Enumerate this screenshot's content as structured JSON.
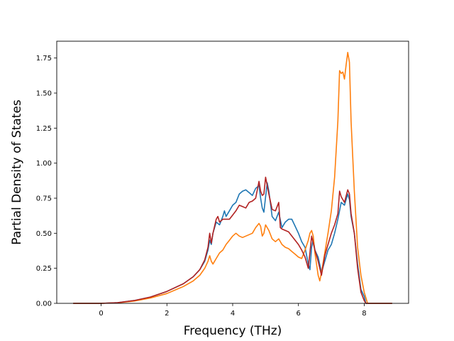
{
  "chart_data": {
    "type": "line",
    "title": "",
    "xlabel": "Frequency (THz)",
    "ylabel": "Partial Density of States",
    "xlim": [
      -1.35,
      9.35
    ],
    "ylim": [
      0.0,
      1.87
    ],
    "xticks": [
      0,
      2,
      4,
      6,
      8
    ],
    "xtick_labels": [
      "0",
      "2",
      "4",
      "6",
      "8"
    ],
    "yticks": [
      0.0,
      0.25,
      0.5,
      0.75,
      1.0,
      1.25,
      1.5,
      1.75
    ],
    "ytick_labels": [
      "0.00",
      "0.25",
      "0.50",
      "0.75",
      "1.00",
      "1.25",
      "1.50",
      "1.75"
    ],
    "grid": false,
    "legend": "none",
    "series": [
      {
        "color": "#1f77b4",
        "points": [
          [
            -0.85,
            0
          ],
          [
            0,
            0
          ],
          [
            0.5,
            0.005
          ],
          [
            1.0,
            0.02
          ],
          [
            1.5,
            0.045
          ],
          [
            2.0,
            0.085
          ],
          [
            2.5,
            0.14
          ],
          [
            2.8,
            0.19
          ],
          [
            3.0,
            0.24
          ],
          [
            3.15,
            0.3
          ],
          [
            3.25,
            0.38
          ],
          [
            3.3,
            0.45
          ],
          [
            3.35,
            0.42
          ],
          [
            3.4,
            0.5
          ],
          [
            3.5,
            0.58
          ],
          [
            3.6,
            0.56
          ],
          [
            3.7,
            0.62
          ],
          [
            3.75,
            0.66
          ],
          [
            3.8,
            0.62
          ],
          [
            3.9,
            0.66
          ],
          [
            4.0,
            0.7
          ],
          [
            4.1,
            0.72
          ],
          [
            4.2,
            0.78
          ],
          [
            4.3,
            0.8
          ],
          [
            4.4,
            0.81
          ],
          [
            4.5,
            0.79
          ],
          [
            4.6,
            0.77
          ],
          [
            4.7,
            0.82
          ],
          [
            4.8,
            0.84
          ],
          [
            4.85,
            0.75
          ],
          [
            4.9,
            0.68
          ],
          [
            4.95,
            0.65
          ],
          [
            5.0,
            0.76
          ],
          [
            5.05,
            0.86
          ],
          [
            5.1,
            0.8
          ],
          [
            5.2,
            0.62
          ],
          [
            5.3,
            0.59
          ],
          [
            5.4,
            0.65
          ],
          [
            5.5,
            0.54
          ],
          [
            5.6,
            0.58
          ],
          [
            5.7,
            0.6
          ],
          [
            5.8,
            0.6
          ],
          [
            5.9,
            0.55
          ],
          [
            6.0,
            0.5
          ],
          [
            6.1,
            0.44
          ],
          [
            6.2,
            0.4
          ],
          [
            6.3,
            0.28
          ],
          [
            6.35,
            0.24
          ],
          [
            6.4,
            0.4
          ],
          [
            6.45,
            0.46
          ],
          [
            6.5,
            0.38
          ],
          [
            6.6,
            0.33
          ],
          [
            6.7,
            0.22
          ],
          [
            6.8,
            0.3
          ],
          [
            6.9,
            0.38
          ],
          [
            7.0,
            0.42
          ],
          [
            7.1,
            0.5
          ],
          [
            7.2,
            0.6
          ],
          [
            7.3,
            0.72
          ],
          [
            7.4,
            0.7
          ],
          [
            7.5,
            0.78
          ],
          [
            7.55,
            0.74
          ],
          [
            7.6,
            0.62
          ],
          [
            7.7,
            0.5
          ],
          [
            7.8,
            0.28
          ],
          [
            7.9,
            0.1
          ],
          [
            8.0,
            0.05
          ],
          [
            8.05,
            0.0
          ],
          [
            8.85,
            0.0
          ]
        ]
      },
      {
        "color": "#ff7f0e",
        "points": [
          [
            -0.85,
            0
          ],
          [
            0,
            0
          ],
          [
            0.5,
            0.004
          ],
          [
            1.0,
            0.016
          ],
          [
            1.5,
            0.038
          ],
          [
            2.0,
            0.07
          ],
          [
            2.5,
            0.12
          ],
          [
            2.8,
            0.16
          ],
          [
            3.0,
            0.2
          ],
          [
            3.15,
            0.25
          ],
          [
            3.25,
            0.3
          ],
          [
            3.3,
            0.34
          ],
          [
            3.35,
            0.3
          ],
          [
            3.4,
            0.28
          ],
          [
            3.5,
            0.32
          ],
          [
            3.6,
            0.36
          ],
          [
            3.7,
            0.38
          ],
          [
            3.8,
            0.42
          ],
          [
            3.9,
            0.45
          ],
          [
            4.0,
            0.48
          ],
          [
            4.1,
            0.5
          ],
          [
            4.2,
            0.48
          ],
          [
            4.3,
            0.47
          ],
          [
            4.4,
            0.48
          ],
          [
            4.5,
            0.49
          ],
          [
            4.6,
            0.5
          ],
          [
            4.7,
            0.54
          ],
          [
            4.8,
            0.57
          ],
          [
            4.85,
            0.55
          ],
          [
            4.9,
            0.48
          ],
          [
            4.95,
            0.5
          ],
          [
            5.0,
            0.56
          ],
          [
            5.1,
            0.52
          ],
          [
            5.2,
            0.46
          ],
          [
            5.3,
            0.44
          ],
          [
            5.4,
            0.46
          ],
          [
            5.5,
            0.42
          ],
          [
            5.6,
            0.4
          ],
          [
            5.7,
            0.39
          ],
          [
            5.8,
            0.37
          ],
          [
            5.9,
            0.35
          ],
          [
            6.0,
            0.33
          ],
          [
            6.1,
            0.32
          ],
          [
            6.2,
            0.38
          ],
          [
            6.3,
            0.45
          ],
          [
            6.35,
            0.5
          ],
          [
            6.4,
            0.52
          ],
          [
            6.45,
            0.48
          ],
          [
            6.5,
            0.36
          ],
          [
            6.6,
            0.2
          ],
          [
            6.65,
            0.16
          ],
          [
            6.7,
            0.22
          ],
          [
            6.8,
            0.36
          ],
          [
            6.9,
            0.5
          ],
          [
            7.0,
            0.66
          ],
          [
            7.1,
            0.9
          ],
          [
            7.2,
            1.3
          ],
          [
            7.25,
            1.66
          ],
          [
            7.3,
            1.64
          ],
          [
            7.35,
            1.65
          ],
          [
            7.4,
            1.6
          ],
          [
            7.45,
            1.7
          ],
          [
            7.5,
            1.79
          ],
          [
            7.55,
            1.72
          ],
          [
            7.6,
            1.3
          ],
          [
            7.7,
            0.8
          ],
          [
            7.8,
            0.4
          ],
          [
            7.9,
            0.2
          ],
          [
            8.0,
            0.08
          ],
          [
            8.1,
            0.0
          ],
          [
            8.85,
            0.0
          ]
        ]
      },
      {
        "color": "#b22222",
        "points": [
          [
            -0.85,
            0
          ],
          [
            0,
            0
          ],
          [
            0.5,
            0.005
          ],
          [
            1.0,
            0.02
          ],
          [
            1.5,
            0.045
          ],
          [
            2.0,
            0.085
          ],
          [
            2.5,
            0.14
          ],
          [
            2.8,
            0.19
          ],
          [
            3.0,
            0.24
          ],
          [
            3.15,
            0.31
          ],
          [
            3.25,
            0.4
          ],
          [
            3.3,
            0.5
          ],
          [
            3.35,
            0.43
          ],
          [
            3.4,
            0.5
          ],
          [
            3.5,
            0.6
          ],
          [
            3.55,
            0.62
          ],
          [
            3.6,
            0.58
          ],
          [
            3.7,
            0.6
          ],
          [
            3.8,
            0.6
          ],
          [
            3.9,
            0.6
          ],
          [
            4.0,
            0.63
          ],
          [
            4.1,
            0.66
          ],
          [
            4.2,
            0.7
          ],
          [
            4.3,
            0.69
          ],
          [
            4.4,
            0.68
          ],
          [
            4.5,
            0.72
          ],
          [
            4.6,
            0.73
          ],
          [
            4.7,
            0.75
          ],
          [
            4.8,
            0.87
          ],
          [
            4.85,
            0.8
          ],
          [
            4.9,
            0.77
          ],
          [
            4.95,
            0.78
          ],
          [
            5.0,
            0.9
          ],
          [
            5.1,
            0.78
          ],
          [
            5.2,
            0.67
          ],
          [
            5.3,
            0.66
          ],
          [
            5.4,
            0.72
          ],
          [
            5.45,
            0.54
          ],
          [
            5.5,
            0.53
          ],
          [
            5.6,
            0.52
          ],
          [
            5.7,
            0.51
          ],
          [
            5.8,
            0.48
          ],
          [
            5.9,
            0.45
          ],
          [
            6.0,
            0.42
          ],
          [
            6.1,
            0.38
          ],
          [
            6.2,
            0.33
          ],
          [
            6.3,
            0.25
          ],
          [
            6.4,
            0.48
          ],
          [
            6.5,
            0.38
          ],
          [
            6.6,
            0.3
          ],
          [
            6.7,
            0.2
          ],
          [
            6.8,
            0.34
          ],
          [
            6.9,
            0.42
          ],
          [
            7.0,
            0.5
          ],
          [
            7.1,
            0.56
          ],
          [
            7.2,
            0.64
          ],
          [
            7.25,
            0.8
          ],
          [
            7.3,
            0.76
          ],
          [
            7.4,
            0.72
          ],
          [
            7.5,
            0.81
          ],
          [
            7.55,
            0.78
          ],
          [
            7.6,
            0.64
          ],
          [
            7.7,
            0.5
          ],
          [
            7.8,
            0.25
          ],
          [
            7.9,
            0.08
          ],
          [
            8.0,
            0.02
          ],
          [
            8.05,
            0.0
          ],
          [
            8.85,
            0.0
          ]
        ]
      }
    ]
  }
}
